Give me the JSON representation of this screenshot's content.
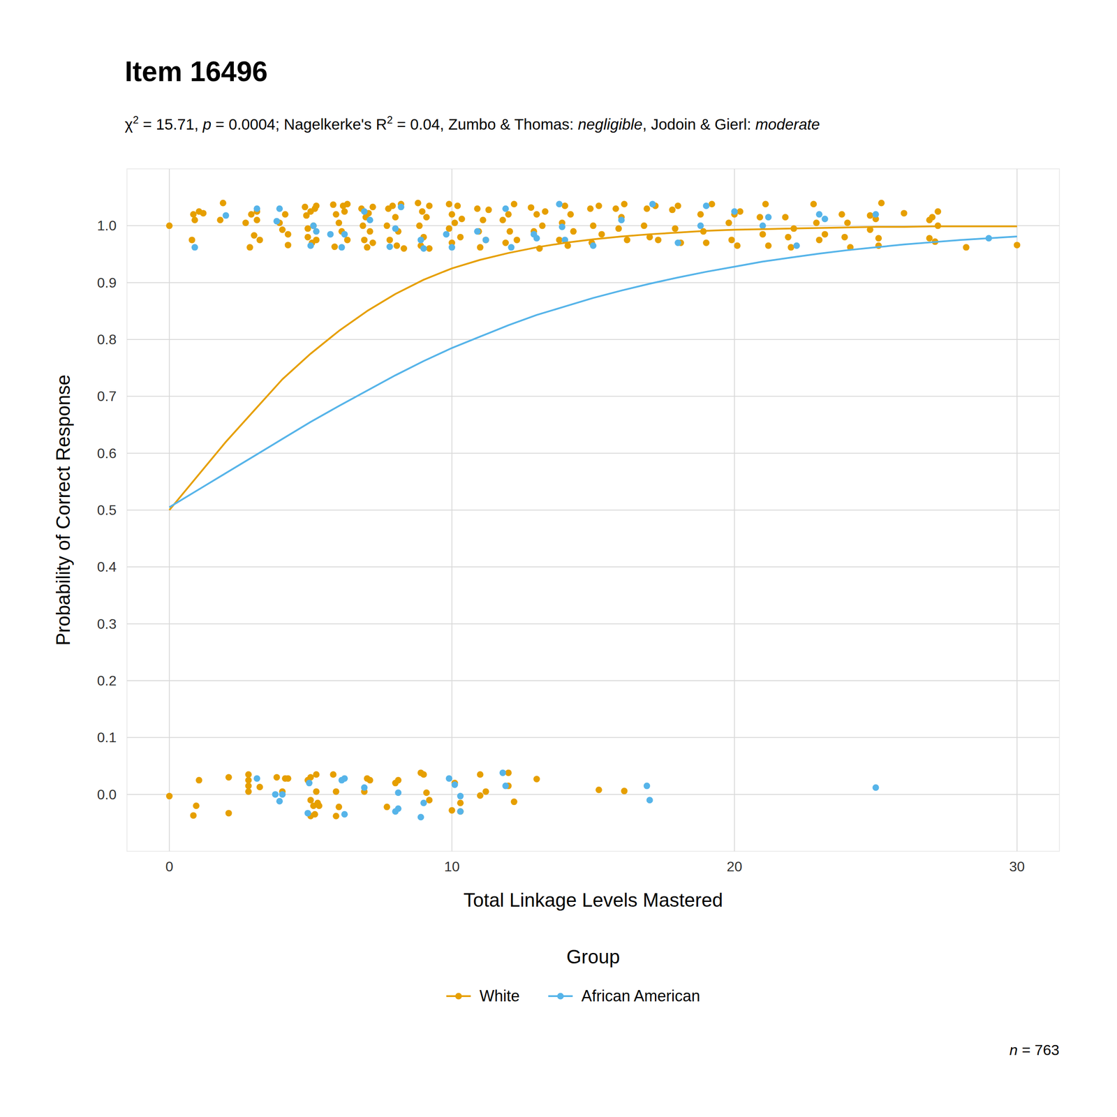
{
  "chart_data": {
    "type": "scatter",
    "title": "Item 16496",
    "subtitle": [
      "χ",
      "2",
      " = 15.71, ",
      "p",
      " = 0.0004; Nagelkerke's R",
      "2",
      " = 0.04, Zumbo & Thomas: ",
      "negligible",
      ", Jodoin & Gierl: ",
      "moderate"
    ],
    "x_label": "Total Linkage Levels Mastered",
    "y_label": "Probability of Correct Response",
    "legend_title": "Group",
    "legend": "bottom",
    "annotation": [
      "n",
      " = 763"
    ],
    "grid": true,
    "xlim": [
      -1.5,
      31.5
    ],
    "ylim": [
      -0.1,
      1.1
    ],
    "xticks": [
      0,
      10,
      20,
      30
    ],
    "yticks": [
      {
        "value": 0,
        "label": "0.0"
      },
      {
        "value": 0.1,
        "label": "0.1"
      },
      {
        "value": 0.2,
        "label": "0.2"
      },
      {
        "value": 0.3,
        "label": "0.3"
      },
      {
        "value": 0.4,
        "label": "0.4"
      },
      {
        "value": 0.5,
        "label": "0.5"
      },
      {
        "value": 0.6,
        "label": "0.6"
      },
      {
        "value": 0.7,
        "label": "0.7"
      },
      {
        "value": 0.8,
        "label": "0.8"
      },
      {
        "value": 0.9,
        "label": "0.9"
      },
      {
        "value": 1,
        "label": "1.0"
      }
    ],
    "series": [
      {
        "name": "White",
        "color": "#E69F00",
        "type": "line",
        "line_style": "solid",
        "marker": "circle",
        "x": [
          0,
          1,
          2,
          3,
          4,
          5,
          6,
          7,
          8,
          9,
          10,
          11,
          12,
          13,
          14,
          15,
          16,
          17,
          18,
          19,
          20,
          21,
          22,
          23,
          24,
          25,
          26,
          27,
          28,
          29,
          30
        ],
        "values": [
          0.5,
          0.56,
          0.62,
          0.675,
          0.73,
          0.775,
          0.815,
          0.85,
          0.88,
          0.905,
          0.925,
          0.94,
          0.952,
          0.962,
          0.97,
          0.976,
          0.981,
          0.985,
          0.988,
          0.991,
          0.993,
          0.994,
          0.995,
          0.996,
          0.997,
          0.998,
          0.998,
          0.999,
          0.999,
          0.999,
          0.999
        ]
      },
      {
        "name": "African American",
        "color": "#56B4E9",
        "type": "line",
        "line_style": "solid",
        "marker": "circle",
        "x": [
          0,
          1,
          2,
          3,
          4,
          5,
          6,
          7,
          8,
          9,
          10,
          11,
          12,
          13,
          14,
          15,
          16,
          17,
          18,
          19,
          20,
          21,
          22,
          23,
          24,
          25,
          26,
          27,
          28,
          29,
          30
        ],
        "values": [
          0.505,
          0.535,
          0.565,
          0.595,
          0.625,
          0.655,
          0.683,
          0.71,
          0.737,
          0.762,
          0.785,
          0.805,
          0.825,
          0.843,
          0.858,
          0.873,
          0.886,
          0.898,
          0.909,
          0.919,
          0.928,
          0.937,
          0.944,
          0.951,
          0.957,
          0.962,
          0.967,
          0.971,
          0.975,
          0.978,
          0.981
        ]
      },
      {
        "name": "White",
        "color": "#E69F00",
        "type": "scatter",
        "marker": "circle",
        "x": [
          0,
          0.85,
          0.95,
          1.05,
          2.1,
          2.1,
          2.8,
          2.8,
          2.8,
          2.8,
          3.2,
          3.8,
          4.0,
          4.1,
          4.2,
          4.9,
          5.0,
          5.0,
          5.0,
          5.1,
          5.15,
          5.2,
          5.2,
          5.25,
          5.3,
          5.8,
          5.9,
          5.9,
          6.0,
          6.9,
          7.0,
          7.1,
          7.7,
          8.0,
          8.1,
          8.9,
          9.0,
          9.1,
          9.2,
          10.0,
          10.1,
          10.3,
          10.3,
          11.0,
          11.0,
          11.2,
          12.0,
          12.0,
          12.2,
          13.0,
          15.2,
          16.1,
          0,
          0.8,
          0.85,
          0.9,
          1.05,
          1.2,
          1.8,
          1.9,
          2.7,
          2.85,
          2.9,
          3.0,
          3.1,
          3.2,
          3.1,
          3.9,
          4.0,
          4.1,
          4.2,
          4.2,
          4.8,
          4.85,
          4.9,
          4.9,
          5.0,
          5.05,
          5.1,
          5.15,
          5.2,
          5.2,
          5.8,
          5.9,
          5.85,
          6.0,
          6.1,
          6.15,
          6.2,
          6.3,
          6.3,
          6.8,
          6.85,
          6.9,
          6.95,
          7.0,
          7.05,
          7.1,
          7.2,
          7.2,
          7.7,
          7.75,
          7.8,
          7.9,
          8.0,
          8.05,
          8.1,
          8.2,
          8.3,
          8.8,
          8.85,
          8.9,
          8.95,
          9.0,
          9.1,
          9.2,
          9.2,
          9.9,
          9.9,
          10.0,
          10.0,
          10.1,
          10.2,
          10.3,
          10.35,
          10.9,
          10.95,
          11.0,
          11.1,
          11.2,
          11.3,
          11.8,
          11.9,
          12.0,
          12.05,
          12.2,
          12.3,
          12.8,
          12.9,
          13.0,
          13.1,
          13.2,
          13.3,
          13.8,
          13.9,
          14.0,
          14.1,
          14.2,
          14.3,
          14.9,
          14.95,
          15.0,
          15.2,
          15.3,
          15.8,
          15.9,
          16.0,
          16.1,
          16.2,
          16.8,
          16.9,
          17.0,
          17.2,
          17.3,
          17.8,
          17.9,
          18.0,
          18.1,
          18.8,
          18.9,
          19.0,
          19.2,
          19.8,
          19.9,
          20.0,
          20.1,
          20.2,
          20.9,
          21.0,
          21.1,
          21.2,
          21.8,
          21.9,
          22.0,
          22.1,
          22.8,
          22.9,
          23.0,
          23.2,
          23.8,
          23.9,
          24.0,
          24.1,
          24.8,
          24.8,
          25.0,
          25.1,
          25.1,
          25.2,
          26.0,
          26.9,
          26.9,
          27.0,
          27.1,
          27.2,
          27.2,
          28.2,
          30.0
        ],
        "values": [
          -0.003,
          -0.037,
          -0.02,
          0.025,
          0.03,
          -0.033,
          0.035,
          0.025,
          0.015,
          0.005,
          0.013,
          0.03,
          0.005,
          0.028,
          0.028,
          0.025,
          0.03,
          -0.01,
          -0.038,
          -0.02,
          -0.035,
          0.005,
          0.035,
          -0.015,
          -0.02,
          0.035,
          0.005,
          -0.038,
          -0.022,
          0.005,
          0.028,
          0.025,
          -0.022,
          0.02,
          0.025,
          0.038,
          0.035,
          0.003,
          -0.01,
          -0.028,
          0.02,
          -0.015,
          -0.03,
          0.035,
          -0.002,
          0.005,
          0.015,
          0.038,
          -0.013,
          0.027,
          0.008,
          0.006,
          1.0,
          0.975,
          1.02,
          1.01,
          1.025,
          1.022,
          1.01,
          1.04,
          1.005,
          0.962,
          1.02,
          0.983,
          1.01,
          0.975,
          1.025,
          1.005,
          0.993,
          1.02,
          0.985,
          0.966,
          1.033,
          1.018,
          0.98,
          0.995,
          1.025,
          0.97,
          1.0,
          1.03,
          0.975,
          1.035,
          1.037,
          1.02,
          0.963,
          1.005,
          0.99,
          1.035,
          1.025,
          0.975,
          1.038,
          1.03,
          1.0,
          0.975,
          1.015,
          0.962,
          1.022,
          0.99,
          1.033,
          0.97,
          1.0,
          1.03,
          0.975,
          1.035,
          1.015,
          0.965,
          0.99,
          1.038,
          0.96,
          1.04,
          1.0,
          0.965,
          1.025,
          0.98,
          1.015,
          1.035,
          0.96,
          1.038,
          0.995,
          1.02,
          0.97,
          1.005,
          1.035,
          0.98,
          1.012,
          1.03,
          0.99,
          0.962,
          1.01,
          0.975,
          1.028,
          1.01,
          0.97,
          1.02,
          0.99,
          1.038,
          0.975,
          1.032,
          0.99,
          1.02,
          0.96,
          1.0,
          1.025,
          0.975,
          1.005,
          1.035,
          0.965,
          1.02,
          0.99,
          1.03,
          0.97,
          1.0,
          1.035,
          0.985,
          1.03,
          0.995,
          1.015,
          1.038,
          0.975,
          1.0,
          1.03,
          0.98,
          1.035,
          0.975,
          1.028,
          0.995,
          1.035,
          0.97,
          1.02,
          0.99,
          0.97,
          1.038,
          1.005,
          0.975,
          1.02,
          0.965,
          1.025,
          1.015,
          0.985,
          1.038,
          0.965,
          1.015,
          0.98,
          0.962,
          0.995,
          1.038,
          1.005,
          0.975,
          0.985,
          1.02,
          0.98,
          1.005,
          0.962,
          1.018,
          0.993,
          1.012,
          0.978,
          0.965,
          1.04,
          1.022,
          1.01,
          0.978,
          1.015,
          0.972,
          1.0,
          1.025,
          0.962,
          0.966
        ]
      },
      {
        "name": "African American",
        "color": "#56B4E9",
        "type": "scatter",
        "marker": "circle",
        "x": [
          3.1,
          3.75,
          3.9,
          4.0,
          4.95,
          4.9,
          6.1,
          6.2,
          6.2,
          6.9,
          8.0,
          8.1,
          8.1,
          8.9,
          9.0,
          9.9,
          10.1,
          10.3,
          10.3,
          11.8,
          11.9,
          16.9,
          17.0,
          25.0,
          0.9,
          2.0,
          3.1,
          3.8,
          3.9,
          5.0,
          5.1,
          5.2,
          5.7,
          6.1,
          6.2,
          6.9,
          7.1,
          7.8,
          8.0,
          8.2,
          8.9,
          9.0,
          9.8,
          10.0,
          10.9,
          11.2,
          11.9,
          12.1,
          12.9,
          13.0,
          13.8,
          13.9,
          14.0,
          15.0,
          16.0,
          17.1,
          18.0,
          18.8,
          19.0,
          20.0,
          21.0,
          21.2,
          22.2,
          23.0,
          23.2,
          25.0,
          29.0
        ],
        "values": [
          0.028,
          0.0,
          -0.012,
          0.0,
          0.02,
          -0.033,
          0.025,
          0.028,
          -0.035,
          0.012,
          -0.03,
          -0.025,
          0.003,
          -0.04,
          -0.015,
          0.028,
          0.017,
          -0.03,
          -0.003,
          0.038,
          0.015,
          0.015,
          -0.01,
          0.012,
          0.962,
          1.018,
          1.03,
          1.008,
          1.03,
          0.965,
          1.0,
          0.99,
          0.985,
          0.962,
          0.985,
          1.025,
          1.01,
          0.963,
          0.995,
          1.033,
          0.975,
          0.96,
          0.985,
          0.962,
          0.99,
          0.975,
          1.03,
          0.962,
          0.985,
          0.978,
          1.038,
          0.998,
          0.975,
          0.965,
          1.01,
          1.038,
          0.97,
          1.0,
          1.035,
          1.025,
          1.0,
          1.015,
          0.965,
          1.02,
          1.012,
          1.02,
          0.978
        ]
      }
    ]
  }
}
